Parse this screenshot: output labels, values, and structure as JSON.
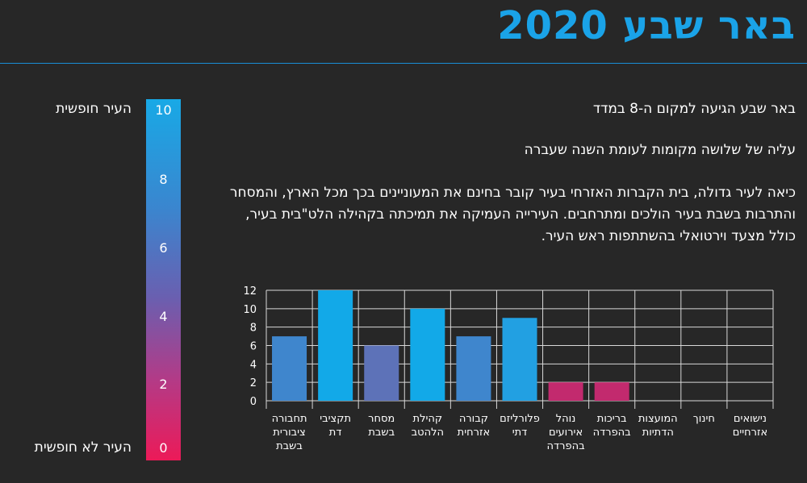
{
  "header": {
    "title": "באר שבע 2020"
  },
  "text": {
    "line1": "באר שבע הגיעה למקום ה-8 במדד",
    "line2": "עליה של שלושה מקומות לעומת השנה שעברה",
    "paragraph": "כיאה לעיר גדולה, בית הקברות האזרחי בעיר קובר בחינם את המעוניינים בכך מכל הארץ, והמסחר והתרבות בשבת בעיר הולכים ומתרחבים. העירייה העמיקה את תמיכתה בקהילה הלט\"בית בעיר, כולל מצעד וירטואלי בהשתתפות ראש העיר."
  },
  "scale": {
    "top_label": "העיר חופשית",
    "bottom_label": "העיר לא חופשית",
    "ticks": [
      "10",
      "8",
      "6",
      "4",
      "2",
      "0"
    ],
    "colors": {
      "top": "#18a9e6",
      "bottom": "#ec1a58"
    }
  },
  "chart_data": {
    "type": "bar",
    "categories": [
      "תחבורה ציבורית בשבת",
      "תקציבי דת",
      "מסחר בשבת",
      "קהילת הלהטב",
      "קבורה אזרחית",
      "פלורליזם דתי",
      "נוהל אירועים בהפרדה",
      "בריכות בהפרדה",
      "המועצות הדתיות",
      "חינוך",
      "נישואים אזרחיים"
    ],
    "values": [
      7,
      12,
      6,
      10,
      7,
      9,
      2,
      2,
      0,
      0,
      0
    ],
    "colors": [
      "#3f86cd",
      "#12a9e8",
      "#5d72b8",
      "#12a9e8",
      "#3f86cd",
      "#22a0e2",
      "#c22a6e",
      "#c22a6e",
      "#c22a6e",
      "#c22a6e",
      "#c22a6e"
    ],
    "yticks": [
      "0",
      "2",
      "4",
      "6",
      "8",
      "10",
      "12"
    ],
    "ylim": [
      0,
      12
    ],
    "grid": true
  }
}
